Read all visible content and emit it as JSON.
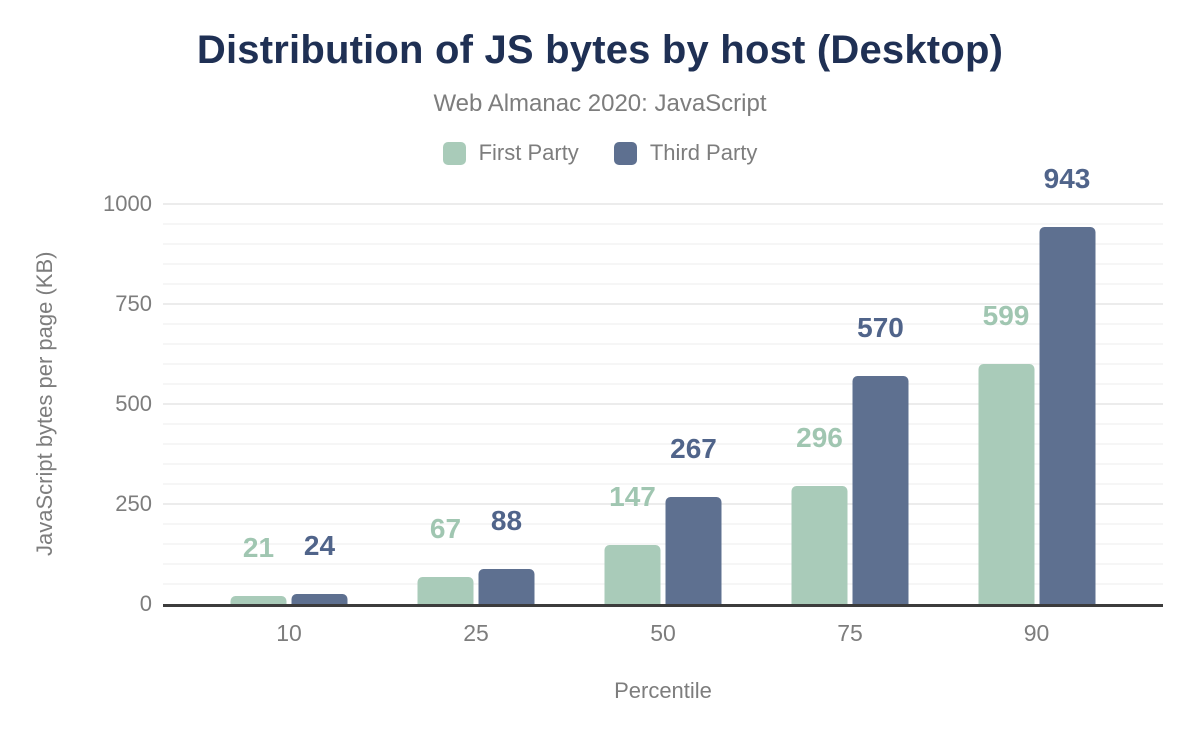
{
  "header": {
    "title": "Distribution of JS bytes by host (Desktop)",
    "subtitle": "Web Almanac 2020: JavaScript"
  },
  "chart_data": {
    "type": "bar",
    "title": "Distribution of JS bytes by host (Desktop)",
    "subtitle": "Web Almanac 2020: JavaScript",
    "categories": [
      "10",
      "25",
      "50",
      "75",
      "90"
    ],
    "series": [
      {
        "name": "First Party",
        "values": [
          21,
          67,
          147,
          296,
          599
        ],
        "bar_color": "#a9cbb9",
        "label_color": "#a0c6b1"
      },
      {
        "name": "Third Party",
        "values": [
          24,
          88,
          267,
          570,
          943
        ],
        "bar_color": "#5e7090",
        "label_color": "#50648a"
      }
    ],
    "xlabel": "Percentile",
    "ylabel": "JavaScript bytes per page (KB)",
    "ylim": [
      0,
      1000
    ],
    "yticks": [
      0,
      250,
      500,
      750,
      1000
    ],
    "grid": {
      "on": true,
      "minor_step": 50,
      "major_step": 250
    },
    "legend_position": "top",
    "data_labels": "above-bars"
  },
  "colors": {
    "title_text": "#1f3054",
    "muted_text": "#7d7d7d",
    "axis_line": "#3c3c3c",
    "grid_minor": "#f6f6f6",
    "grid_major": "#ececec",
    "background": "#ffffff"
  }
}
